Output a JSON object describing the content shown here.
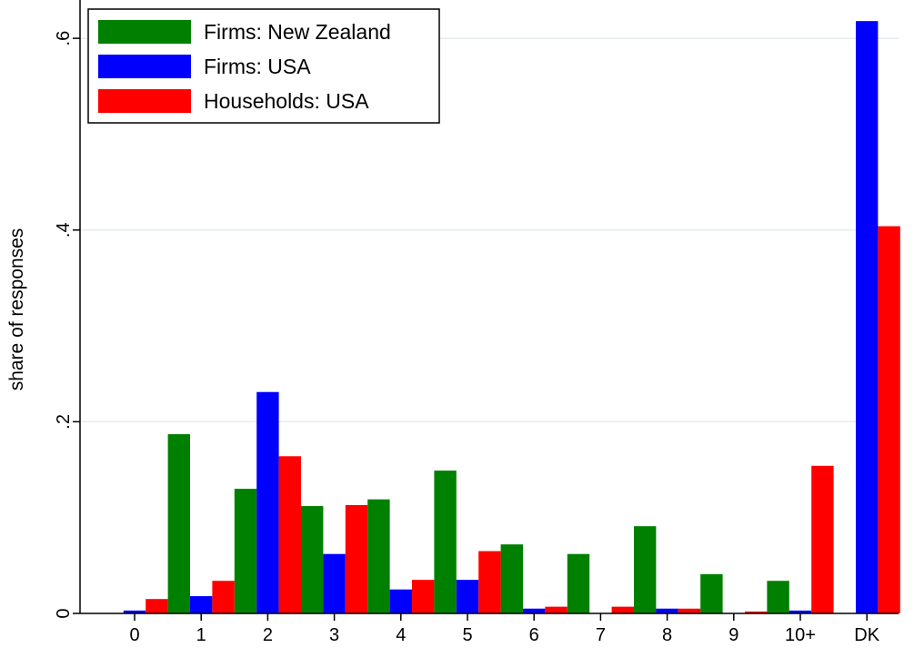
{
  "chart_data": {
    "type": "bar",
    "ylabel": "share of responses",
    "xlabel": "",
    "ylim": [
      0,
      0.64
    ],
    "yticks": [
      0,
      0.2,
      0.4,
      0.6
    ],
    "ytick_labels": [
      "0",
      ".2",
      ".4",
      ".6"
    ],
    "grid": "horizontal",
    "legend_position": "top-left",
    "categories": [
      "0",
      "1",
      "2",
      "3",
      "4",
      "5",
      "6",
      "7",
      "8",
      "9",
      "10+",
      "DK"
    ],
    "series": [
      {
        "name": "Firms: New Zealand",
        "color": "#008000",
        "values": [
          0.0,
          0.187,
          0.13,
          0.112,
          0.119,
          0.149,
          0.072,
          0.062,
          0.091,
          0.041,
          0.034,
          0.0
        ]
      },
      {
        "name": "Firms: USA",
        "color": "#0000ff",
        "values": [
          0.003,
          0.018,
          0.231,
          0.062,
          0.025,
          0.035,
          0.005,
          0.0,
          0.005,
          0.0,
          0.003,
          0.618
        ]
      },
      {
        "name": "Households: USA",
        "color": "#ff0000",
        "values": [
          0.015,
          0.034,
          0.164,
          0.113,
          0.035,
          0.065,
          0.007,
          0.007,
          0.005,
          0.002,
          0.154,
          0.404
        ]
      }
    ]
  }
}
